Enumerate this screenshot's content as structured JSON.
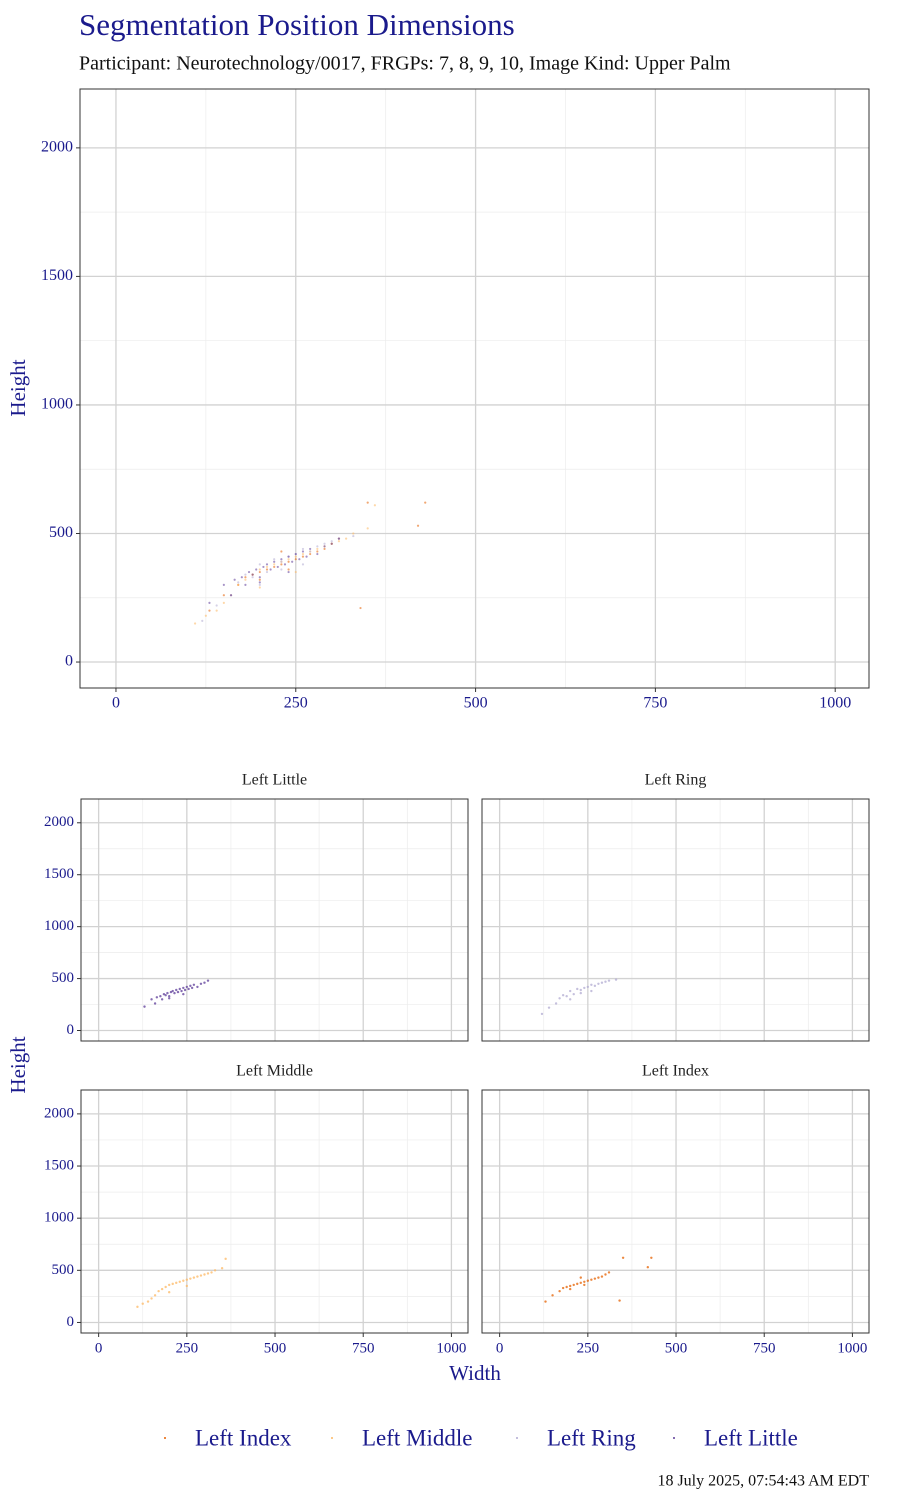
{
  "chart_data": {
    "type": "scatter",
    "title": "Segmentation Position Dimensions",
    "subtitle": "Participant: Neurotechnology/0017, FRGPs: 7, 8, 9, 10, Image Kind: Upper Palm",
    "xlabel": "Width",
    "ylabel": "Height",
    "xlim": [
      -50,
      1047
    ],
    "ylim": [
      -101,
      2229
    ],
    "xticks": [
      0,
      250,
      500,
      750,
      1000
    ],
    "yticks": [
      0,
      500,
      1000,
      1500,
      2000
    ],
    "grid": true,
    "facets": [
      "Left Little",
      "Left Ring",
      "Left Middle",
      "Left Index"
    ],
    "legend": "bottom",
    "footer": "18 July 2025, 07:54:43 AM EDT",
    "series": [
      {
        "name": "Left Index",
        "color": "#e66101",
        "x": [
          130,
          150,
          170,
          180,
          190,
          200,
          210,
          220,
          230,
          240,
          250,
          260,
          270,
          280,
          290,
          300,
          310,
          340,
          350,
          430,
          420,
          200,
          240,
          230
        ],
        "y": [
          200,
          260,
          300,
          330,
          340,
          350,
          360,
          370,
          380,
          390,
          400,
          410,
          420,
          430,
          440,
          460,
          480,
          210,
          620,
          620,
          530,
          320,
          360,
          430
        ]
      },
      {
        "name": "Left Middle",
        "color": "#fdb863",
        "x": [
          110,
          125,
          140,
          150,
          160,
          170,
          180,
          190,
          200,
          210,
          220,
          230,
          240,
          250,
          260,
          270,
          280,
          290,
          300,
          310,
          320,
          330,
          350,
          360,
          200,
          250
        ],
        "y": [
          150,
          180,
          200,
          230,
          260,
          300,
          320,
          340,
          360,
          370,
          380,
          390,
          400,
          410,
          420,
          430,
          440,
          450,
          460,
          470,
          480,
          500,
          520,
          610,
          290,
          350
        ]
      },
      {
        "name": "Left Ring",
        "color": "#b2abd2",
        "x": [
          120,
          140,
          160,
          180,
          190,
          200,
          210,
          220,
          230,
          240,
          250,
          260,
          270,
          280,
          290,
          300,
          310,
          330,
          170,
          200,
          230,
          260
        ],
        "y": [
          160,
          220,
          260,
          340,
          330,
          380,
          350,
          400,
          390,
          410,
          420,
          440,
          430,
          450,
          460,
          470,
          480,
          490,
          310,
          300,
          360,
          380
        ]
      },
      {
        "name": "Left Little",
        "color": "#5e3c99",
        "x": [
          150,
          165,
          175,
          180,
          185,
          190,
          195,
          200,
          205,
          210,
          215,
          220,
          225,
          230,
          235,
          240,
          245,
          250,
          255,
          260,
          265,
          270,
          280,
          290,
          300,
          310,
          130,
          160,
          200,
          240
        ],
        "y": [
          300,
          320,
          330,
          300,
          350,
          340,
          360,
          330,
          370,
          380,
          360,
          390,
          370,
          400,
          380,
          410,
          390,
          420,
          400,
          430,
          410,
          440,
          420,
          450,
          460,
          480,
          230,
          260,
          310,
          350
        ]
      }
    ]
  }
}
